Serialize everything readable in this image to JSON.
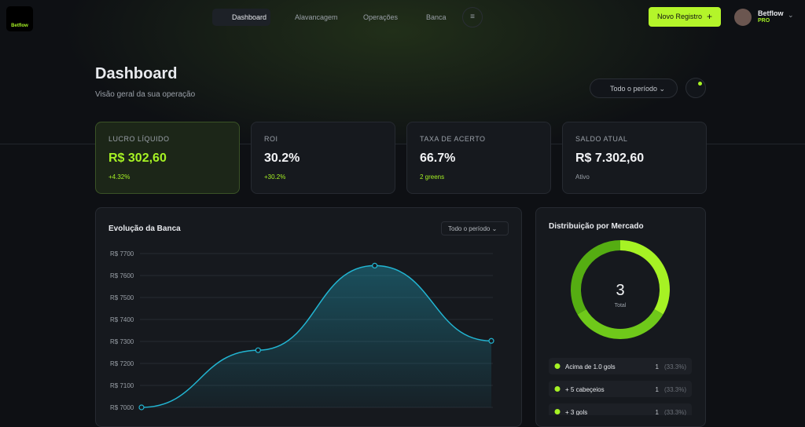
{
  "nav": {
    "logo": "Betflow",
    "items": [
      "Dashboard",
      "Alavancagem",
      "Operações",
      "Banca"
    ],
    "new_button": "Novo Registro",
    "user_name": "Betflow",
    "user_plan": "PRO"
  },
  "header": {
    "title": "Dashboard",
    "subtitle": "Visão geral da sua operação",
    "period": "Todo o período"
  },
  "stats": [
    {
      "label": "LUCRO LÍQUIDO",
      "value": "R$ 302,60",
      "note": "+4.32%"
    },
    {
      "label": "ROI",
      "value": "30.2%",
      "note": "+30.2%"
    },
    {
      "label": "TAXA DE ACERTO",
      "value": "66.7%",
      "note": "2 greens"
    },
    {
      "label": "SALDO ATUAL",
      "value": "R$ 7.302,60",
      "note": "Ativo"
    }
  ],
  "line_card": {
    "period": "Todo o período"
  },
  "chart_data": [
    {
      "type": "line",
      "title": "Evolução da Banca",
      "categories": [
        null,
        null,
        null,
        null
      ],
      "series": [
        {
          "color": "#22b5d2",
          "values": [
            7000,
            7260,
            7645,
            7302.6
          ]
        }
      ],
      "ylim": [
        7000,
        7700
      ],
      "yticks": [
        {
          "value": 7000,
          "label": "R$ 7000"
        },
        {
          "value": 7100,
          "label": "R$ 7100"
        },
        {
          "value": 7200,
          "label": "R$ 7200"
        },
        {
          "value": 7300,
          "label": "R$ 7300"
        },
        {
          "value": 7400,
          "label": "R$ 7400"
        },
        {
          "value": 7500,
          "label": "R$ 7500"
        },
        {
          "value": 7600,
          "label": "R$ 7600"
        },
        {
          "value": 7700,
          "label": "R$ 7700"
        }
      ],
      "grid": true
    },
    {
      "type": "pie",
      "title": "Distribuição por Mercado",
      "categories": [
        "Acima de 1.0 gols",
        "+ 5 cabeçeios",
        "+ 3 gols"
      ],
      "values": [
        1,
        1,
        1
      ],
      "percent_labels": [
        "(33.3%)",
        "(33.3%)",
        "(33.3%)"
      ],
      "colors": [
        "#a6f224",
        "#6fc91a",
        "#55ad12"
      ],
      "center_value": 3,
      "center_label": "Total"
    }
  ]
}
